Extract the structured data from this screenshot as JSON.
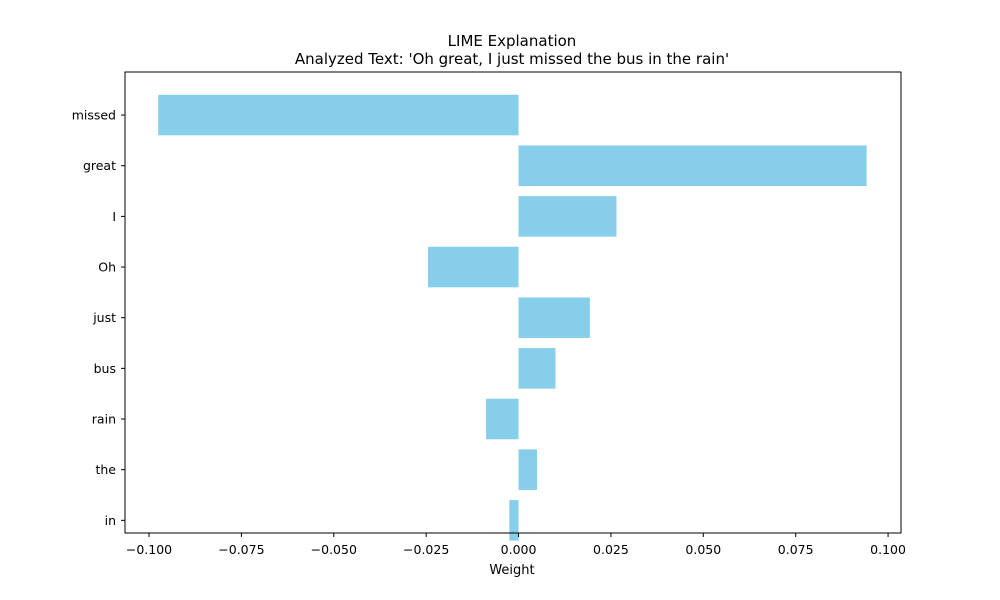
{
  "chart_data": {
    "type": "bar",
    "orientation": "horizontal",
    "title": "LIME Explanation",
    "subtitle": "Analyzed Text: 'Oh great, I just missed the bus in the rain'",
    "xlabel": "Weight",
    "ylabel": "",
    "categories": [
      "missed",
      "great",
      "I",
      "Oh",
      "just",
      "bus",
      "rain",
      "the",
      "in"
    ],
    "values": [
      -0.0975,
      0.0942,
      0.0265,
      -0.0245,
      0.0193,
      0.01,
      -0.0088,
      0.005,
      -0.0025
    ],
    "xlim": [
      -0.1065,
      0.1035
    ],
    "xticks": [
      -0.1,
      -0.075,
      -0.05,
      -0.025,
      0.0,
      0.025,
      0.05,
      0.075,
      0.1
    ],
    "xtick_labels": [
      "−0.100",
      "−0.075",
      "−0.050",
      "−0.025",
      "0.000",
      "0.025",
      "0.050",
      "0.075",
      "0.100"
    ],
    "bar_color": "#87ceeb",
    "grid": false,
    "legend": "none"
  }
}
